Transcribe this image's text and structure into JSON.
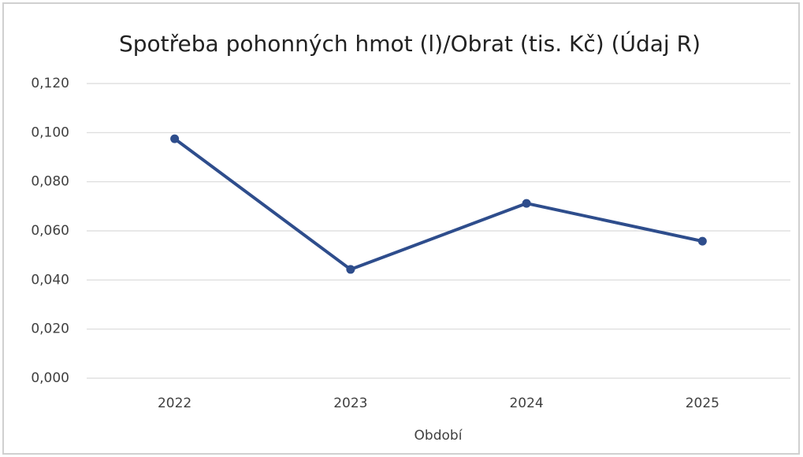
{
  "chart_data": {
    "type": "line",
    "title": "Spotřeba pohonných hmot (l)/Obrat (tis. Kč) (Údaj R)",
    "x_label": "Období",
    "categories": [
      "2022",
      "2023",
      "2024",
      "2025"
    ],
    "series": [
      {
        "name": "Spotřeba pohonných hmot (l)/Obrat (tis. Kč)",
        "color": "#2e4d8c",
        "values": [
          0.0975,
          0.0443,
          0.0712,
          0.0558
        ]
      }
    ],
    "ylim": [
      0,
      0.12
    ],
    "yticks": [
      {
        "value": 0,
        "label": "0,000"
      },
      {
        "value": 0.02,
        "label": "0,020"
      },
      {
        "value": 0.04,
        "label": "0,040"
      },
      {
        "value": 0.06,
        "label": "0,060"
      },
      {
        "value": 0.08,
        "label": "0,080"
      },
      {
        "value": 0.1,
        "label": "0,100"
      },
      {
        "value": 0.12,
        "label": "0,120"
      }
    ],
    "grid": true
  }
}
